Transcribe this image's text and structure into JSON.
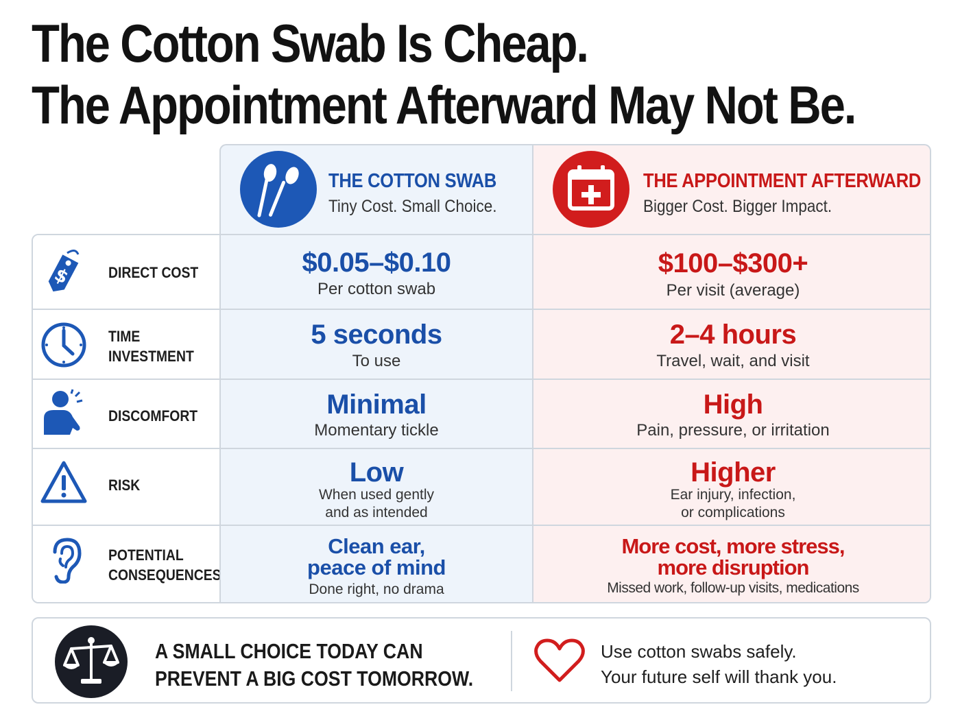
{
  "title": {
    "line1": "The Cotton Swab Is Cheap.",
    "line2": "The Appointment Afterward May Not Be."
  },
  "columns": {
    "swab": {
      "title": "THE COTTON SWAB",
      "subtitle": "Tiny Cost. Small Choice.",
      "icon": "cotton-swab-icon",
      "color": "#1d58b6"
    },
    "appointment": {
      "title": "THE APPOINTMENT AFTERWARD",
      "subtitle": "Bigger Cost. Bigger Impact.",
      "icon": "medical-calendar-icon",
      "color": "#d11d1d"
    }
  },
  "rows": [
    {
      "label_lines": [
        "DIRECT COST"
      ],
      "icon": "price-tag-icon",
      "swab": {
        "main": "$0.05–$0.10",
        "sub": [
          "Per cotton swab"
        ]
      },
      "appointment": {
        "main": "$100–$300+",
        "sub": [
          "Per visit (average)"
        ]
      }
    },
    {
      "label_lines": [
        "TIME",
        "INVESTMENT"
      ],
      "icon": "clock-icon",
      "swab": {
        "main": "5 seconds",
        "sub": [
          "To use"
        ]
      },
      "appointment": {
        "main": "2–4 hours",
        "sub": [
          "Travel, wait, and visit"
        ]
      }
    },
    {
      "label_lines": [
        "DISCOMFORT"
      ],
      "icon": "person-ear-icon",
      "swab": {
        "main": "Minimal",
        "sub": [
          "Momentary tickle"
        ]
      },
      "appointment": {
        "main": "High",
        "sub": [
          "Pain, pressure, or irritation"
        ]
      }
    },
    {
      "label_lines": [
        "RISK"
      ],
      "icon": "warning-icon",
      "swab": {
        "main": "Low",
        "sub": [
          "When used gently",
          "and as intended"
        ]
      },
      "appointment": {
        "main": "Higher",
        "sub": [
          "Ear injury, infection,",
          "or complications"
        ]
      }
    },
    {
      "label_lines": [
        "POTENTIAL",
        "CONSEQUENCES"
      ],
      "icon": "ear-icon",
      "swab": {
        "main_lines": [
          "Clean ear,",
          "peace of mind"
        ],
        "sub": [
          "Done right, no drama"
        ]
      },
      "appointment": {
        "main_lines": [
          "More cost, more stress,",
          "more disruption"
        ],
        "sub": [
          "Missed work, follow-up visits, medications"
        ]
      }
    }
  ],
  "footer": {
    "left_lines": [
      "A SMALL CHOICE TODAY CAN",
      "PREVENT A BIG COST TOMORROW."
    ],
    "left_icon": "balance-scale-icon",
    "right_icon": "heart-icon",
    "right_lines": [
      "Use cotton swabs safely.",
      "Your future self will thank you."
    ]
  }
}
